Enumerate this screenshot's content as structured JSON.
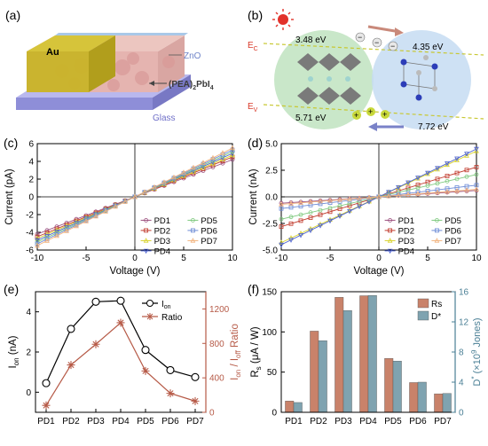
{
  "panels": {
    "a": {
      "label": "(a)",
      "layers": {
        "electrode": "Au",
        "top": "ZnO",
        "active": "(PEA)",
        "active_sub": "2",
        "active_tail": "PbI",
        "active_sub2": "4",
        "substrate": "Glass"
      }
    },
    "b": {
      "label": "(b)",
      "ec": "E",
      "ec_sub": "C",
      "ev": "E",
      "ev_sub": "V",
      "left_cb": "3.48 eV",
      "left_vb": "5.71 eV",
      "right_cb": "4.35 eV",
      "right_vb": "7.72 eV",
      "minus": "−",
      "plus": "+"
    }
  },
  "chart_data": [
    {
      "panel": "(c)",
      "type": "line",
      "xlabel": "Voltage (V)",
      "ylabel": "Current (pA)",
      "xlim": [
        -10,
        10
      ],
      "ylim": [
        -6,
        6
      ],
      "xticks": [
        -10,
        -5,
        0,
        5,
        10
      ],
      "yticks": [
        -6,
        -4,
        -2,
        0,
        2,
        4,
        6
      ],
      "legend_position": "lower-right",
      "series": [
        {
          "name": "PD1",
          "color": "#9b4f7e",
          "slope": 0.42
        },
        {
          "name": "PD2",
          "color": "#c0392b",
          "slope": 0.45
        },
        {
          "name": "PD3",
          "color": "#d8d22a",
          "slope": 0.47
        },
        {
          "name": "PD4",
          "color": "#4a5fd0",
          "slope": 0.49
        },
        {
          "name": "PD5",
          "color": "#7ec97e",
          "slope": 0.51
        },
        {
          "name": "PD6",
          "color": "#6c8bd6",
          "slope": 0.53
        },
        {
          "name": "PD7",
          "color": "#f2b27c",
          "slope": 0.55
        }
      ]
    },
    {
      "panel": "(d)",
      "type": "line",
      "xlabel": "Voltage (V)",
      "ylabel": "Current (nA)",
      "xlim": [
        -10,
        10
      ],
      "ylim": [
        -5,
        5
      ],
      "xticks": [
        -10,
        -5,
        0,
        5,
        10
      ],
      "yticks": [
        -5.0,
        -2.5,
        0.0,
        2.5,
        5.0
      ],
      "ytick_labels": [
        "-5.0",
        "-2.5",
        "0.0",
        "2.5",
        "5.0"
      ],
      "legend_position": "lower-right",
      "series": [
        {
          "name": "PD1",
          "color": "#9b4f7e",
          "slope": 0.06
        },
        {
          "name": "PD2",
          "color": "#c0392b",
          "slope": 0.28
        },
        {
          "name": "PD3",
          "color": "#d8d22a",
          "slope": 0.43
        },
        {
          "name": "PD4",
          "color": "#4a5fd0",
          "slope": 0.45
        },
        {
          "name": "PD5",
          "color": "#7ec97e",
          "slope": 0.21
        },
        {
          "name": "PD6",
          "color": "#6c8bd6",
          "slope": 0.11
        },
        {
          "name": "PD7",
          "color": "#f2b27c",
          "slope": 0.07
        }
      ]
    },
    {
      "panel": "(e)",
      "type": "line",
      "categories": [
        "PD1",
        "PD2",
        "PD3",
        "PD4",
        "PD5",
        "PD6",
        "PD7"
      ],
      "left_ylabel": "I",
      "left_ylabel_sub": "on",
      "left_ylabel_unit": " (nA)",
      "right_ylabel": "I",
      "right_ylabel_sub1": "on",
      "right_ylabel_mid": " / I",
      "right_ylabel_sub2": "off",
      "right_ylabel_tail": " Ratio",
      "left_ylim": [
        -1,
        5
      ],
      "left_yticks": [
        0,
        2,
        4
      ],
      "right_ylim": [
        0,
        1400
      ],
      "right_yticks": [
        0,
        400,
        800,
        1200
      ],
      "right_color": "#b65a47",
      "legend_position": "top-right",
      "series": [
        {
          "name": "I",
          "name_sub": "on",
          "axis": "left",
          "color": "#000000",
          "values": [
            0.45,
            3.15,
            4.5,
            4.55,
            2.1,
            1.1,
            0.75
          ]
        },
        {
          "name": "Ratio",
          "axis": "right",
          "color": "#b65a47",
          "values": [
            80,
            550,
            790,
            1040,
            480,
            220,
            130
          ]
        }
      ]
    },
    {
      "panel": "(f)",
      "type": "bar",
      "categories": [
        "PD1",
        "PD2",
        "PD3",
        "PD4",
        "PD5",
        "PD6",
        "PD7"
      ],
      "left_ylabel": "R",
      "left_ylabel_sub": "s",
      "left_ylabel_unit": " (μA / W)",
      "right_ylabel": "D",
      "right_ylabel_sup": "*",
      "right_ylabel_unit": " (×10",
      "right_ylabel_exp": "9",
      "right_ylabel_tail": " Jones)",
      "left_ylim": [
        0,
        150
      ],
      "left_yticks": [
        0,
        50,
        100,
        150
      ],
      "right_ylim": [
        0,
        16
      ],
      "right_yticks": [
        0,
        4,
        8,
        12,
        16
      ],
      "right_color": "#4a7f95",
      "legend_position": "top-right",
      "series": [
        {
          "name": "Rs",
          "axis": "left",
          "color": "#c9826a",
          "values": [
            14,
            101,
            143,
            145,
            67,
            37,
            23
          ]
        },
        {
          "name": "D*",
          "axis": "right",
          "color": "#7fa3b0",
          "values": [
            1.3,
            9.5,
            13.5,
            15.5,
            6.8,
            4.0,
            2.5
          ]
        }
      ]
    }
  ]
}
